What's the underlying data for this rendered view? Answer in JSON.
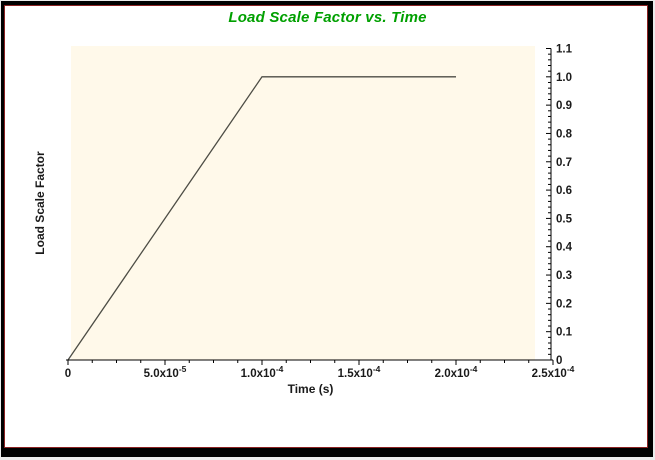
{
  "window": {
    "title": "Load Scale Factor vs. Time"
  },
  "colors": {
    "title_green": "#00A000",
    "frame_black": "#000000",
    "frame_inner_red": "#8B2222",
    "plot_background": "#FFF9EA",
    "curve": "#4D4D45",
    "axis": "#000000",
    "text": "#1A1A1A",
    "page_background": "#ECECEC"
  },
  "chart_data": {
    "type": "line",
    "title": "Load Scale Factor vs. Time",
    "xlabel": "Time (s)",
    "ylabel": "Load Scale Factor",
    "xlim": [
      0,
      0.00025
    ],
    "ylim": [
      0,
      1.1
    ],
    "grid": false,
    "legend": false,
    "x_axis": {
      "label": "Time (s)",
      "side": "bottom",
      "minor_subdivisions": 4,
      "major_ticks": [
        {
          "value": 0,
          "label": "0",
          "exp": ""
        },
        {
          "value": 5e-05,
          "label": "5.0x10",
          "exp": "-5"
        },
        {
          "value": 0.0001,
          "label": "1.0x10",
          "exp": "-4"
        },
        {
          "value": 0.00015,
          "label": "1.5x10",
          "exp": "-4"
        },
        {
          "value": 0.0002,
          "label": "2.0x10",
          "exp": "-4"
        },
        {
          "value": 0.00025,
          "label": "2.5x10",
          "exp": "-4"
        }
      ]
    },
    "y_axis": {
      "label": "Load Scale Factor",
      "side": "right",
      "minor_subdivisions": 5,
      "major_ticks": [
        {
          "value": 0,
          "label": "0"
        },
        {
          "value": 0.1,
          "label": "0.1"
        },
        {
          "value": 0.2,
          "label": "0.2"
        },
        {
          "value": 0.3,
          "label": "0.3"
        },
        {
          "value": 0.4,
          "label": "0.4"
        },
        {
          "value": 0.5,
          "label": "0.5"
        },
        {
          "value": 0.6,
          "label": "0.6"
        },
        {
          "value": 0.7,
          "label": "0.7"
        },
        {
          "value": 0.8,
          "label": "0.8"
        },
        {
          "value": 0.9,
          "label": "0.9"
        },
        {
          "value": 1.0,
          "label": "1.0"
        },
        {
          "value": 1.1,
          "label": "1.1"
        }
      ]
    },
    "series": [
      {
        "name": "load_scale_factor_curve",
        "points": [
          [
            0,
            0
          ],
          [
            0.0001,
            1.0
          ],
          [
            0.0002,
            1.0
          ]
        ]
      }
    ]
  }
}
